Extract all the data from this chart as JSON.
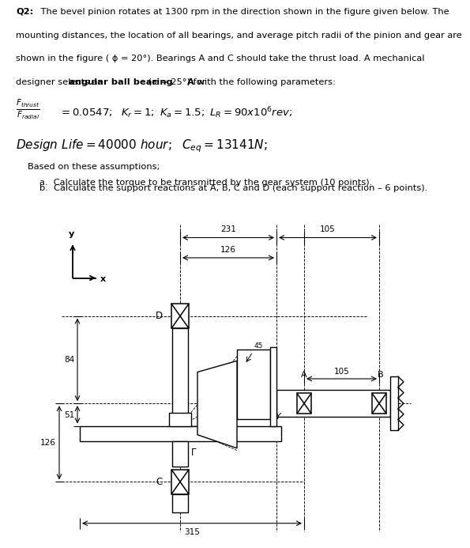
{
  "bg_color": "#ffffff",
  "text_color": "#000000",
  "q2_bold": "Q2:",
  "q2_text_line1": " The bevel pinion rotates at 1300 rpm in the direction shown in the figure given below. The",
  "q2_text_line2": "mounting distances, the location of all bearings, and average pitch radii of the pinion and gear are",
  "q2_text_line3": "shown in the figure ( ϕ = 20°). Bearings A and C should take the thrust load. A mechanical",
  "q2_text_line4a": "designer selects an ",
  "q2_text_line4b": "angular ball bearing",
  "q2_text_line4c": " (α = 25°) for ",
  "q2_text_line4d": "A",
  "q2_text_line4e": " with the following parameters:",
  "formula_frac_top": "F_{thrust}",
  "formula_frac_bot": "F_{radial}",
  "formula_rest": "= 0.0547;  K_r = 1;  K_a = 1.5; L_R = 90x10^6 rev;",
  "design_life": "Design Life = 40000 hour;  C_{eq} = 13141N;",
  "based": "Based on these assumptions;",
  "qa": "a.  Calculate the torque to be transmitted by the gear system (10 points).",
  "qb": "b.  Calculate the support reactions at A, B, C and D (each support reaction – 6 points).",
  "dim_231": "231",
  "dim_105_top": "105",
  "dim_126": "126",
  "dim_84": "84",
  "dim_51": "51",
  "dim_126_left": "126",
  "dim_315": "315",
  "dim_105_right": "105",
  "dim_45": "45",
  "label_D": "D",
  "label_A": "A",
  "label_B": "B",
  "label_C": "C",
  "label_Y": "Y",
  "label_Gamma": "Γ",
  "label_x": "x",
  "label_y": "y"
}
